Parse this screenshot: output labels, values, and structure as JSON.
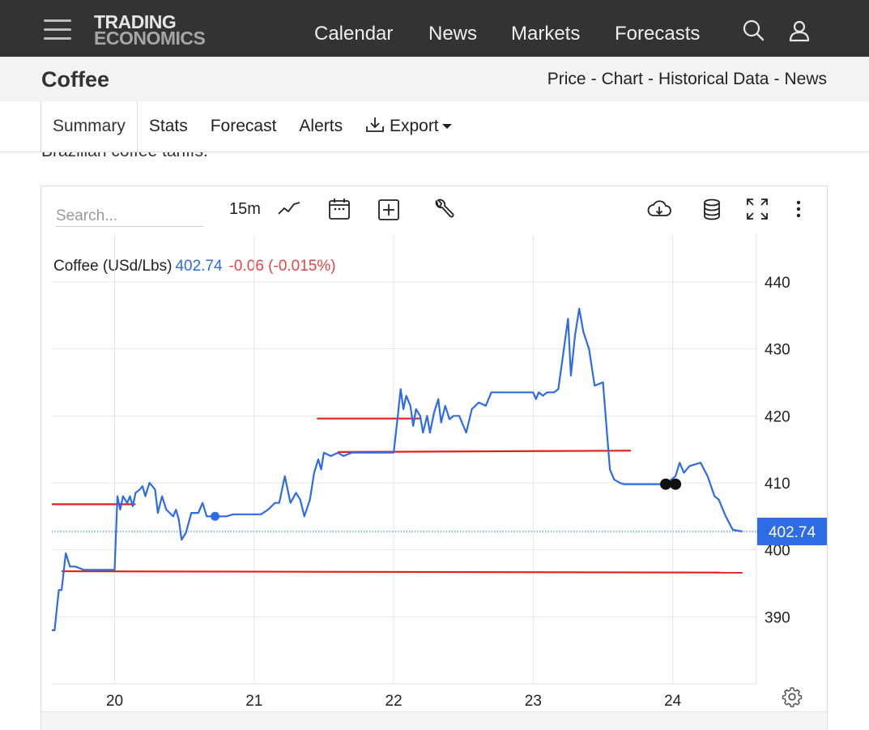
{
  "header": {
    "logo_line1": "TRADING",
    "logo_line2": "ECONOMICS",
    "nav": [
      "Calendar",
      "News",
      "Markets",
      "Forecasts"
    ]
  },
  "subheader": {
    "title": "Coffee",
    "links": [
      "Price",
      "Chart",
      "Historical Data",
      "News"
    ],
    "separator": "-"
  },
  "tabs": {
    "summary": "Summary",
    "stats": "Stats",
    "forecast": "Forecast",
    "alerts": "Alerts",
    "export": "Export"
  },
  "clipped_text": "Brazilian coffee tariffs.",
  "toolbar": {
    "search_placeholder": "Search...",
    "period": "15m",
    "icons": [
      "line-chart-icon",
      "calendar-icon",
      "plus-box-icon",
      "wrench-icon",
      "cloud-download-icon",
      "database-icon",
      "fullscreen-icon",
      "more-vertical-icon"
    ]
  },
  "legend": {
    "name": "Coffee (USd/Lbs)",
    "price": "402.74",
    "change": "-0.06 (-0.015%)"
  },
  "colors": {
    "line": "#2e6be6",
    "trend": "#e0201a",
    "price_tag": "#2e6be6"
  },
  "chart_data": {
    "type": "line",
    "series": [
      {
        "values": [
          [
            19.55,
            388
          ],
          [
            19.57,
            388
          ],
          [
            19.6,
            394
          ],
          [
            19.62,
            394
          ],
          [
            19.65,
            399.5
          ],
          [
            19.68,
            397.5
          ],
          [
            19.72,
            397.5
          ],
          [
            19.78,
            397
          ],
          [
            19.85,
            397
          ],
          [
            19.95,
            397
          ],
          [
            20.0,
            397
          ],
          [
            20.02,
            408
          ],
          [
            20.04,
            406
          ],
          [
            20.06,
            408
          ],
          [
            20.09,
            407
          ],
          [
            20.11,
            408
          ],
          [
            20.13,
            406.5
          ],
          [
            20.15,
            408.5
          ],
          [
            20.18,
            409
          ],
          [
            20.2,
            409.5
          ],
          [
            20.22,
            408
          ],
          [
            20.25,
            410
          ],
          [
            20.29,
            409
          ],
          [
            20.31,
            405.5
          ],
          [
            20.34,
            408
          ],
          [
            20.37,
            406
          ],
          [
            20.42,
            405
          ],
          [
            20.44,
            406
          ],
          [
            20.46,
            404.5
          ],
          [
            20.48,
            401.5
          ],
          [
            20.51,
            402.5
          ],
          [
            20.55,
            405.5
          ],
          [
            20.6,
            405.5
          ],
          [
            20.63,
            407
          ],
          [
            20.66,
            405
          ],
          [
            20.7,
            405
          ],
          [
            20.8,
            405
          ],
          [
            20.85,
            405.3
          ],
          [
            20.97,
            405.3
          ],
          [
            21.05,
            405.3
          ],
          [
            21.1,
            406
          ],
          [
            21.15,
            407
          ],
          [
            21.18,
            407
          ],
          [
            21.22,
            411
          ],
          [
            21.26,
            407
          ],
          [
            21.3,
            408.5
          ],
          [
            21.33,
            407.5
          ],
          [
            21.36,
            405
          ],
          [
            21.4,
            407.5
          ],
          [
            21.43,
            411.5
          ],
          [
            21.46,
            413.5
          ],
          [
            21.48,
            412
          ],
          [
            21.5,
            414.5
          ],
          [
            21.55,
            414
          ],
          [
            21.6,
            414.5
          ],
          [
            21.64,
            414
          ],
          [
            21.7,
            414.5
          ],
          [
            21.8,
            414.5
          ],
          [
            21.97,
            414.5
          ],
          [
            22.0,
            414.5
          ],
          [
            22.03,
            420
          ],
          [
            22.05,
            424
          ],
          [
            22.07,
            421
          ],
          [
            22.09,
            423
          ],
          [
            22.12,
            421.5
          ],
          [
            22.14,
            418.5
          ],
          [
            22.16,
            421
          ],
          [
            22.19,
            420
          ],
          [
            22.21,
            417.5
          ],
          [
            22.24,
            420
          ],
          [
            22.26,
            417.5
          ],
          [
            22.29,
            420.5
          ],
          [
            22.32,
            422.5
          ],
          [
            22.34,
            419
          ],
          [
            22.37,
            421.5
          ],
          [
            22.4,
            419.5
          ],
          [
            22.43,
            420
          ],
          [
            22.47,
            420
          ],
          [
            22.52,
            417.5
          ],
          [
            22.56,
            421
          ],
          [
            22.61,
            422
          ],
          [
            22.66,
            421.5
          ],
          [
            22.7,
            423.5
          ],
          [
            22.75,
            423.5
          ],
          [
            22.9,
            423.5
          ],
          [
            23.0,
            423.5
          ],
          [
            23.02,
            422.5
          ],
          [
            23.04,
            423.5
          ],
          [
            23.07,
            423
          ],
          [
            23.1,
            423.5
          ],
          [
            23.15,
            423.5
          ],
          [
            23.18,
            424
          ],
          [
            23.25,
            434.5
          ],
          [
            23.27,
            426
          ],
          [
            23.3,
            432
          ],
          [
            23.33,
            436
          ],
          [
            23.36,
            432.5
          ],
          [
            23.4,
            430
          ],
          [
            23.44,
            424.5
          ],
          [
            23.5,
            425
          ],
          [
            23.55,
            412
          ],
          [
            23.58,
            410.5
          ],
          [
            23.62,
            410
          ],
          [
            23.65,
            409.8
          ],
          [
            23.75,
            409.8
          ],
          [
            23.85,
            409.8
          ],
          [
            23.95,
            409.8
          ],
          [
            24.02,
            411
          ],
          [
            24.05,
            413
          ],
          [
            24.08,
            411.5
          ],
          [
            24.12,
            412.5
          ],
          [
            24.2,
            413
          ],
          [
            24.25,
            411
          ],
          [
            24.3,
            408
          ],
          [
            24.33,
            407.5
          ],
          [
            24.38,
            405
          ],
          [
            24.43,
            403
          ],
          [
            24.5,
            402.74
          ]
        ]
      }
    ],
    "trend_lines": [
      {
        "x": [
          19.55,
          20.15
        ],
        "y": [
          406.8,
          406.8
        ]
      },
      {
        "x": [
          19.62,
          24.5
        ],
        "y": [
          396.8,
          396.6
        ]
      },
      {
        "x": [
          21.45,
          22.2
        ],
        "y": [
          419.6,
          419.6
        ]
      },
      {
        "x": [
          21.6,
          23.7
        ],
        "y": [
          414.6,
          414.8
        ]
      }
    ],
    "markers": [
      {
        "x": 20.72,
        "y": 405.0,
        "color": "#2e6be6"
      },
      {
        "x": 23.95,
        "y": 409.8,
        "color": "#111111"
      },
      {
        "x": 24.02,
        "y": 409.8,
        "color": "#111111"
      }
    ],
    "current_price": 402.74,
    "current_price_label": "402.74",
    "xlim": [
      19.55,
      24.6
    ],
    "ylim": [
      380,
      447
    ],
    "x_ticks": [
      20,
      21,
      22,
      23,
      24
    ],
    "x_tick_labels": [
      "20",
      "21",
      "22",
      "23",
      "24"
    ],
    "y_ticks": [
      390,
      400,
      410,
      420,
      430,
      440
    ],
    "y_tick_labels": [
      "390",
      "400",
      "410",
      "420",
      "430",
      "440"
    ],
    "grid": true
  }
}
